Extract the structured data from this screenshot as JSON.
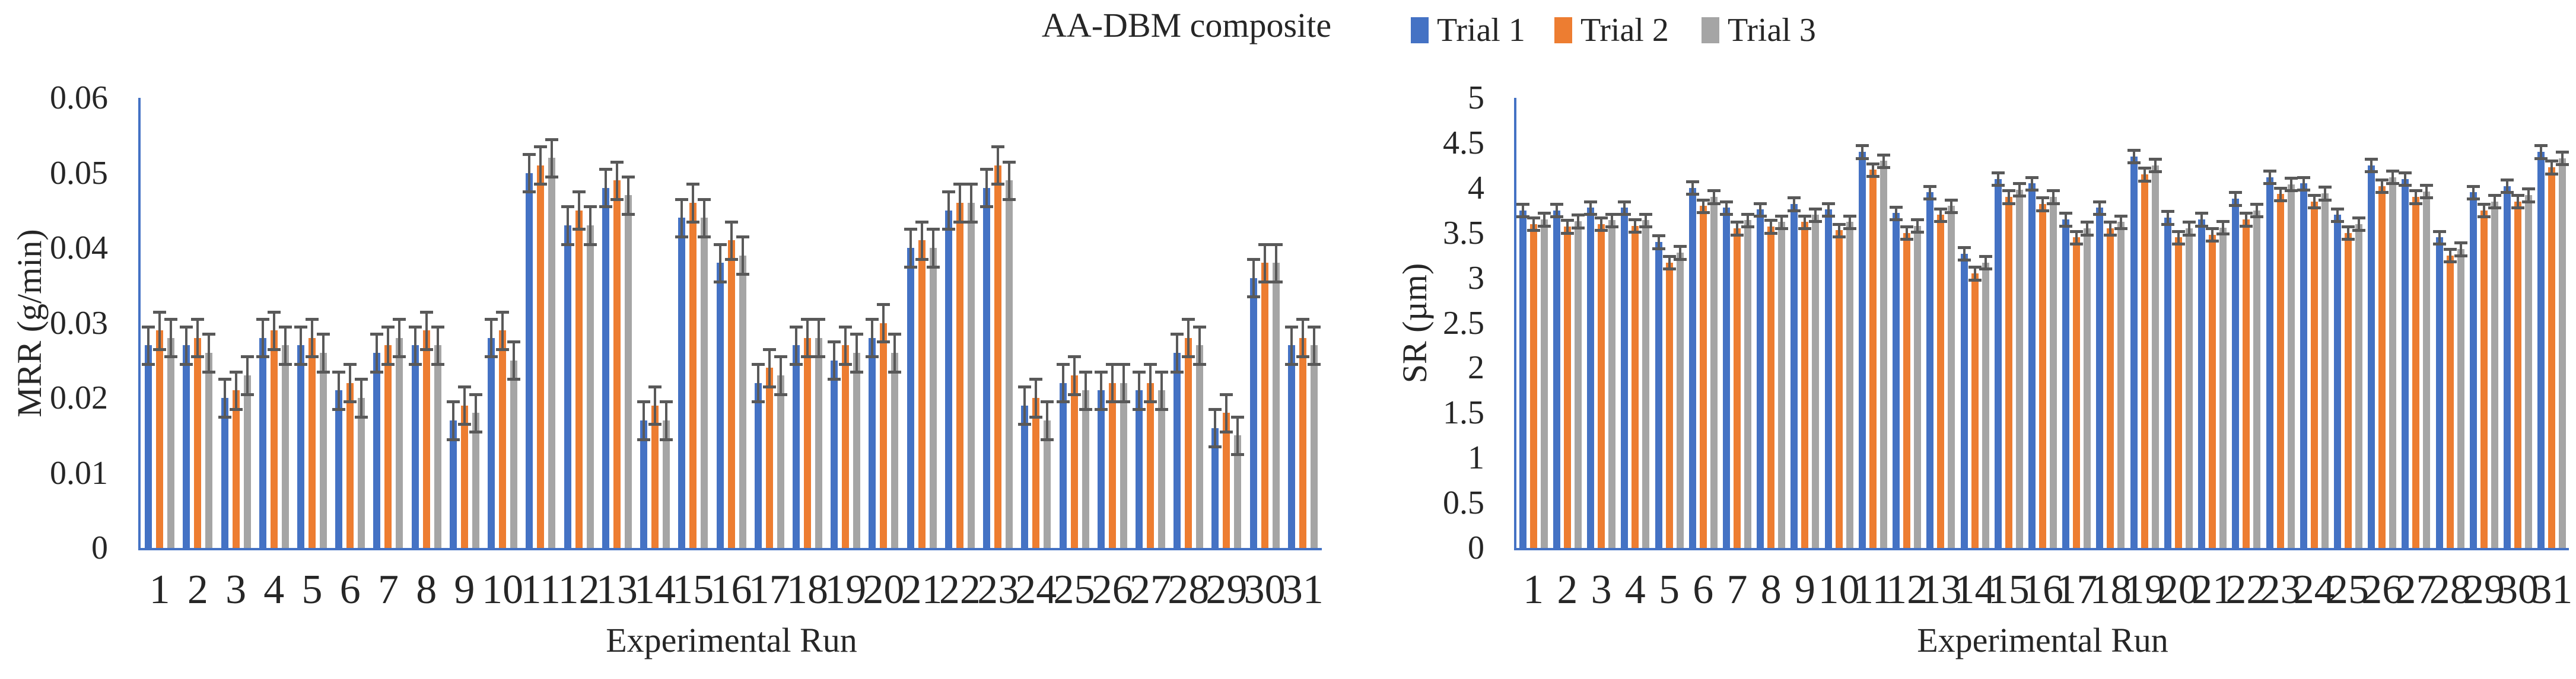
{
  "figure": {
    "title": "AA-DBM composite"
  },
  "legend": [
    {
      "label": "Trial 1",
      "color": "#4472C4"
    },
    {
      "label": "Trial 2",
      "color": "#ED7D31"
    },
    {
      "label": "Trial 3",
      "color": "#A5A5A5"
    }
  ],
  "colors": {
    "axis": "#4472C4",
    "error_bar": "#595959",
    "text": "#262626",
    "background": "#ffffff"
  },
  "chart_data": [
    {
      "type": "bar",
      "name": "MRR chart",
      "ylabel": "MRR (g/min)",
      "xlabel": "Experimental Run",
      "ylim": [
        0,
        0.06
      ],
      "grid": false,
      "legend_position": "top",
      "error_bar_value": 0.0025,
      "ytick_labels": [
        "0",
        "0.01",
        "0.02",
        "0.03",
        "0.04",
        "0.05",
        "0.06"
      ],
      "categories": [
        "1",
        "2",
        "3",
        "4",
        "5",
        "6",
        "7",
        "8",
        "9",
        "10",
        "11",
        "12",
        "13",
        "14",
        "15",
        "16",
        "17",
        "18",
        "19",
        "20",
        "21",
        "22",
        "23",
        "24",
        "25",
        "26",
        "27",
        "28",
        "29",
        "30",
        "31"
      ],
      "series": [
        {
          "name": "Trial 1",
          "color": "#4472C4",
          "values": [
            0.027,
            0.027,
            0.02,
            0.028,
            0.027,
            0.021,
            0.026,
            0.027,
            0.017,
            0.028,
            0.05,
            0.043,
            0.048,
            0.017,
            0.044,
            0.038,
            0.022,
            0.027,
            0.025,
            0.028,
            0.04,
            0.045,
            0.048,
            0.019,
            0.022,
            0.021,
            0.021,
            0.026,
            0.016,
            0.036,
            0.027
          ]
        },
        {
          "name": "Trial 2",
          "color": "#ED7D31",
          "values": [
            0.029,
            0.028,
            0.021,
            0.029,
            0.028,
            0.022,
            0.027,
            0.029,
            0.019,
            0.029,
            0.051,
            0.045,
            0.049,
            0.019,
            0.046,
            0.041,
            0.024,
            0.028,
            0.027,
            0.03,
            0.041,
            0.046,
            0.051,
            0.02,
            0.023,
            0.022,
            0.022,
            0.028,
            0.018,
            0.038,
            0.028
          ]
        },
        {
          "name": "Trial 3",
          "color": "#A5A5A5",
          "values": [
            0.028,
            0.026,
            0.023,
            0.027,
            0.026,
            0.02,
            0.028,
            0.027,
            0.018,
            0.025,
            0.052,
            0.043,
            0.047,
            0.017,
            0.044,
            0.039,
            0.023,
            0.028,
            0.026,
            0.026,
            0.04,
            0.046,
            0.049,
            0.017,
            0.021,
            0.022,
            0.021,
            0.027,
            0.015,
            0.038,
            0.027
          ]
        }
      ]
    },
    {
      "type": "bar",
      "name": "SR chart",
      "ylabel": "SR (µm)",
      "xlabel": "Experimental Run",
      "ylim": [
        0,
        5
      ],
      "grid": false,
      "legend_position": "top",
      "error_bar_value": 0.07,
      "ytick_labels": [
        "0",
        "0.5",
        "1",
        "1.5",
        "2",
        "2.5",
        "3",
        "3.5",
        "4",
        "4.5",
        "5"
      ],
      "categories": [
        "1",
        "2",
        "3",
        "4",
        "5",
        "6",
        "7",
        "8",
        "9",
        "10",
        "11",
        "12",
        "13",
        "14",
        "15",
        "16",
        "17",
        "18",
        "19",
        "20",
        "21",
        "22",
        "23",
        "24",
        "25",
        "26",
        "27",
        "28",
        "29",
        "30",
        "31"
      ],
      "series": [
        {
          "name": "Trial 1",
          "color": "#4472C4",
          "values": [
            3.75,
            3.75,
            3.78,
            3.78,
            3.4,
            4.0,
            3.78,
            3.76,
            3.82,
            3.76,
            4.4,
            3.72,
            3.95,
            3.27,
            4.1,
            4.05,
            3.65,
            3.78,
            4.35,
            3.67,
            3.65,
            3.88,
            4.12,
            4.05,
            3.7,
            4.25,
            4.1,
            3.45,
            3.95,
            4.02,
            4.4
          ]
        },
        {
          "name": "Trial 2",
          "color": "#ED7D31",
          "values": [
            3.6,
            3.57,
            3.6,
            3.58,
            3.17,
            3.8,
            3.55,
            3.57,
            3.62,
            3.53,
            4.2,
            3.5,
            3.7,
            3.05,
            3.9,
            3.82,
            3.45,
            3.55,
            4.15,
            3.45,
            3.48,
            3.65,
            3.93,
            3.85,
            3.5,
            4.02,
            3.9,
            3.25,
            3.75,
            3.85,
            4.23
          ]
        },
        {
          "name": "Trial 3",
          "color": "#A5A5A5",
          "values": [
            3.65,
            3.63,
            3.64,
            3.64,
            3.28,
            3.9,
            3.64,
            3.62,
            3.7,
            3.62,
            4.3,
            3.58,
            3.8,
            3.17,
            3.98,
            3.9,
            3.55,
            3.62,
            4.25,
            3.55,
            3.56,
            3.75,
            4.04,
            3.94,
            3.6,
            4.12,
            3.96,
            3.32,
            3.85,
            3.92,
            4.33
          ]
        }
      ]
    }
  ]
}
